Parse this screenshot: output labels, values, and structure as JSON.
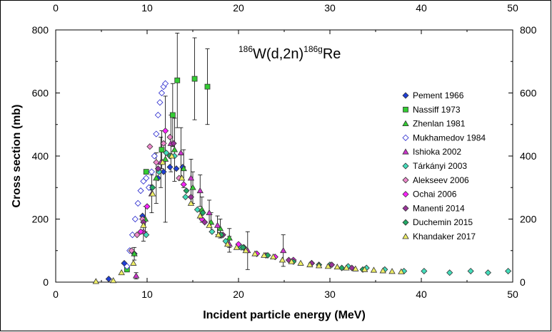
{
  "chart_data": {
    "type": "scatter",
    "title": "186W(d,2n)186gRe",
    "title_parts": {
      "pre_mass": "186",
      "target": "W(d,2n)",
      "post_mass": "186g",
      "product": "Re"
    },
    "xlabel": "Incident particle energy (MeV)",
    "ylabel": "Cross section (mb)",
    "xlim": [
      0,
      50
    ],
    "ylim": [
      0,
      800
    ],
    "x_ticks": [
      "0",
      "10",
      "20",
      "30",
      "40",
      "50"
    ],
    "y_ticks": [
      "0",
      "200",
      "400",
      "600",
      "800"
    ],
    "legend_position": "right",
    "series": [
      {
        "name": "Pement 1966",
        "marker": "diamond",
        "color": "#1f3fd6",
        "points": [
          [
            5.8,
            10
          ],
          [
            7.5,
            60
          ],
          [
            8.6,
            90
          ],
          [
            9.5,
            210
          ],
          [
            10.4,
            300
          ],
          [
            11.2,
            330
          ],
          [
            11.8,
            350
          ],
          [
            12.5,
            365
          ],
          [
            13.2,
            360
          ],
          [
            13.9,
            365
          ]
        ]
      },
      {
        "name": "Nassiff 1973",
        "marker": "square",
        "color": "#33cc33",
        "points": [
          [
            7.8,
            40
          ],
          [
            9.9,
            350
          ],
          [
            11.6,
            420
          ],
          [
            12.8,
            530
          ],
          [
            13.3,
            640
          ],
          [
            15.2,
            645
          ],
          [
            16.6,
            620
          ]
        ],
        "errors": [
          0,
          0,
          60,
          100,
          150,
          130,
          120
        ]
      },
      {
        "name": "Zhenlan 1981",
        "marker": "triangle",
        "color": "#33cc33",
        "points": [
          [
            8.6,
            90
          ],
          [
            9.8,
            200
          ],
          [
            11.0,
            330
          ],
          [
            12.0,
            390
          ],
          [
            13.0,
            420
          ],
          [
            14.0,
            360
          ],
          [
            15.0,
            300
          ],
          [
            16.0,
            230
          ],
          [
            17.0,
            190
          ],
          [
            18.0,
            170
          ],
          [
            19.0,
            140
          ]
        ],
        "errors": [
          20,
          40,
          80,
          200,
          100,
          60,
          50,
          40,
          30,
          30,
          30
        ]
      },
      {
        "name": "Mukhamedov 1984",
        "marker": "diamond-open",
        "color": "#2222cc",
        "points": [
          [
            7.8,
            50
          ],
          [
            8.1,
            100
          ],
          [
            8.4,
            150
          ],
          [
            8.7,
            200
          ],
          [
            9.0,
            250
          ],
          [
            9.3,
            290
          ],
          [
            9.6,
            320
          ],
          [
            9.9,
            330
          ],
          [
            10.2,
            300
          ],
          [
            10.5,
            350
          ],
          [
            10.8,
            400
          ],
          [
            11.0,
            470
          ],
          [
            11.2,
            530
          ],
          [
            11.4,
            570
          ],
          [
            11.6,
            600
          ],
          [
            11.8,
            620
          ],
          [
            12.0,
            630
          ]
        ]
      },
      {
        "name": "Ishioka 2002",
        "marker": "triangle",
        "color": "#cc33cc",
        "points": [
          [
            8.8,
            20
          ],
          [
            9.6,
            160
          ],
          [
            10.5,
            280
          ],
          [
            11.5,
            380
          ],
          [
            12.6,
            440
          ],
          [
            13.7,
            410
          ],
          [
            14.8,
            330
          ],
          [
            15.8,
            290
          ],
          [
            16.8,
            220
          ],
          [
            17.7,
            180
          ],
          [
            19.0,
            120
          ],
          [
            21.0,
            100
          ],
          [
            24.9,
            100
          ]
        ],
        "errors": [
          10,
          30,
          60,
          80,
          90,
          80,
          60,
          50,
          40,
          30,
          25,
          60,
          50
        ]
      },
      {
        "name": "Tárkányi 2003",
        "marker": "diamond",
        "color": "#44ddbb",
        "points": [
          [
            9.9,
            150
          ],
          [
            11.3,
            350
          ],
          [
            12.1,
            410
          ],
          [
            13.0,
            400
          ],
          [
            14.2,
            270
          ],
          [
            15.5,
            230
          ],
          [
            17.1,
            160
          ],
          [
            18.6,
            130
          ],
          [
            20.3,
            110
          ],
          [
            22.0,
            90
          ],
          [
            24.0,
            80
          ],
          [
            26.0,
            70
          ],
          [
            28.0,
            60
          ],
          [
            30.0,
            55
          ],
          [
            32.0,
            50
          ],
          [
            34.0,
            45
          ],
          [
            36.0,
            40
          ],
          [
            38.1,
            35
          ],
          [
            40.3,
            35
          ],
          [
            43.1,
            30
          ],
          [
            45.4,
            35
          ],
          [
            47.3,
            30
          ],
          [
            49.5,
            35
          ]
        ]
      },
      {
        "name": "Alekseev 2006",
        "marker": "diamond",
        "color": "#ee88cc",
        "points": [
          [
            8.3,
            100
          ],
          [
            8.9,
            150
          ],
          [
            9.5,
            200
          ],
          [
            10.3,
            430
          ],
          [
            11.0,
            380
          ],
          [
            11.8,
            440
          ],
          [
            12.5,
            460
          ],
          [
            13.5,
            330
          ]
        ]
      },
      {
        "name": "Ochai 2006",
        "marker": "diamond",
        "color": "#ff22ff",
        "points": [
          [
            9.3,
            160
          ],
          [
            10.0,
            240
          ],
          [
            12.0,
            480
          ],
          [
            14.0,
            310
          ],
          [
            16.0,
            200
          ],
          [
            18.0,
            150
          ],
          [
            20.0,
            120
          ],
          [
            22.0,
            90
          ],
          [
            24.0,
            80
          ],
          [
            26.0,
            70
          ],
          [
            28.0,
            60
          ]
        ]
      },
      {
        "name": "Manenti 2014",
        "marker": "diamond",
        "color": "#993399",
        "points": [
          [
            9.6,
            190
          ],
          [
            11.2,
            360
          ],
          [
            12.9,
            440
          ],
          [
            14.8,
            270
          ],
          [
            16.3,
            190
          ],
          [
            18.3,
            150
          ],
          [
            20.6,
            110
          ],
          [
            23.0,
            85
          ],
          [
            25.5,
            70
          ],
          [
            28.0,
            60
          ],
          [
            30.2,
            55
          ],
          [
            32.4,
            45
          ]
        ]
      },
      {
        "name": "Duchemin 2015",
        "marker": "diamond",
        "color": "#22aa66",
        "points": [
          [
            10.6,
            300
          ],
          [
            12.5,
            400
          ],
          [
            14.3,
            290
          ],
          [
            16.1,
            220
          ],
          [
            18.1,
            150
          ],
          [
            20.5,
            110
          ],
          [
            23.2,
            85
          ],
          [
            26.0,
            65
          ],
          [
            28.8,
            55
          ],
          [
            31.3,
            45
          ],
          [
            33.6,
            40
          ]
        ]
      },
      {
        "name": "Khandaker 2017",
        "marker": "triangle",
        "color": "#eeee66",
        "points": [
          [
            4.4,
            2
          ],
          [
            6.3,
            5
          ],
          [
            7.2,
            30
          ],
          [
            8.5,
            60
          ],
          [
            9.6,
            180
          ],
          [
            10.6,
            280
          ],
          [
            11.7,
            380
          ],
          [
            12.7,
            400
          ],
          [
            13.8,
            330
          ],
          [
            14.8,
            250
          ],
          [
            15.8,
            210
          ],
          [
            16.8,
            180
          ],
          [
            17.8,
            150
          ],
          [
            18.8,
            120
          ],
          [
            19.8,
            110
          ],
          [
            20.8,
            100
          ],
          [
            21.8,
            90
          ],
          [
            22.8,
            85
          ],
          [
            23.8,
            80
          ],
          [
            24.8,
            70
          ],
          [
            25.8,
            65
          ],
          [
            26.8,
            60
          ],
          [
            27.8,
            55
          ],
          [
            28.8,
            52
          ],
          [
            29.8,
            50
          ],
          [
            30.8,
            48
          ],
          [
            31.8,
            45
          ],
          [
            32.8,
            42
          ],
          [
            33.8,
            40
          ],
          [
            34.8,
            38
          ],
          [
            35.8,
            36
          ],
          [
            36.8,
            34
          ],
          [
            37.8,
            33
          ]
        ]
      }
    ]
  }
}
